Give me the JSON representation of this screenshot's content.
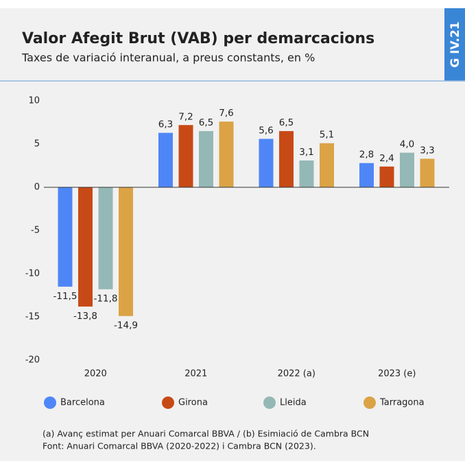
{
  "chart_data": {
    "type": "bar",
    "title": "Valor Afegit Brut (VAB) per demarcacions",
    "subtitle": "Taxes de variació interanual, a preus constants, en %",
    "tag": "G IV.21",
    "categories": [
      "2020",
      "2021",
      "2022 (a)",
      "2023 (e)"
    ],
    "series": [
      {
        "name": "Barcelona",
        "color": "#4f86f7",
        "values": [
          -11.5,
          6.3,
          5.6,
          2.8
        ],
        "value_labels": [
          "-11,5",
          "6,3",
          "5,6",
          "2,8"
        ]
      },
      {
        "name": "Girona",
        "color": "#c74a16",
        "values": [
          -13.8,
          7.2,
          6.5,
          2.4
        ],
        "value_labels": [
          "-13,8",
          "7,2",
          "6,5",
          "2,4"
        ]
      },
      {
        "name": "Lleida",
        "color": "#94b8b5",
        "values": [
          -11.8,
          6.5,
          3.1,
          4.0
        ],
        "value_labels": [
          "-11,8",
          "6,5",
          "3,1",
          "4,0"
        ]
      },
      {
        "name": "Tarragona",
        "color": "#dba346",
        "values": [
          -14.9,
          7.6,
          5.1,
          3.3
        ],
        "value_labels": [
          "-14,9",
          "7,6",
          "5,1",
          "3,3"
        ]
      }
    ],
    "ylim": [
      -20,
      10
    ],
    "yticks": [
      10,
      5,
      0,
      -5,
      -10,
      -15,
      -20
    ],
    "legend": "bottom",
    "notes": [
      "(a) Avanç estimat per Anuari Comarcal BBVA / (b) Esimiació de Cambra BCN",
      "Font: Anuari Comarcal BBVA (2020-2022) i Cambra BCN (2023)."
    ]
  }
}
